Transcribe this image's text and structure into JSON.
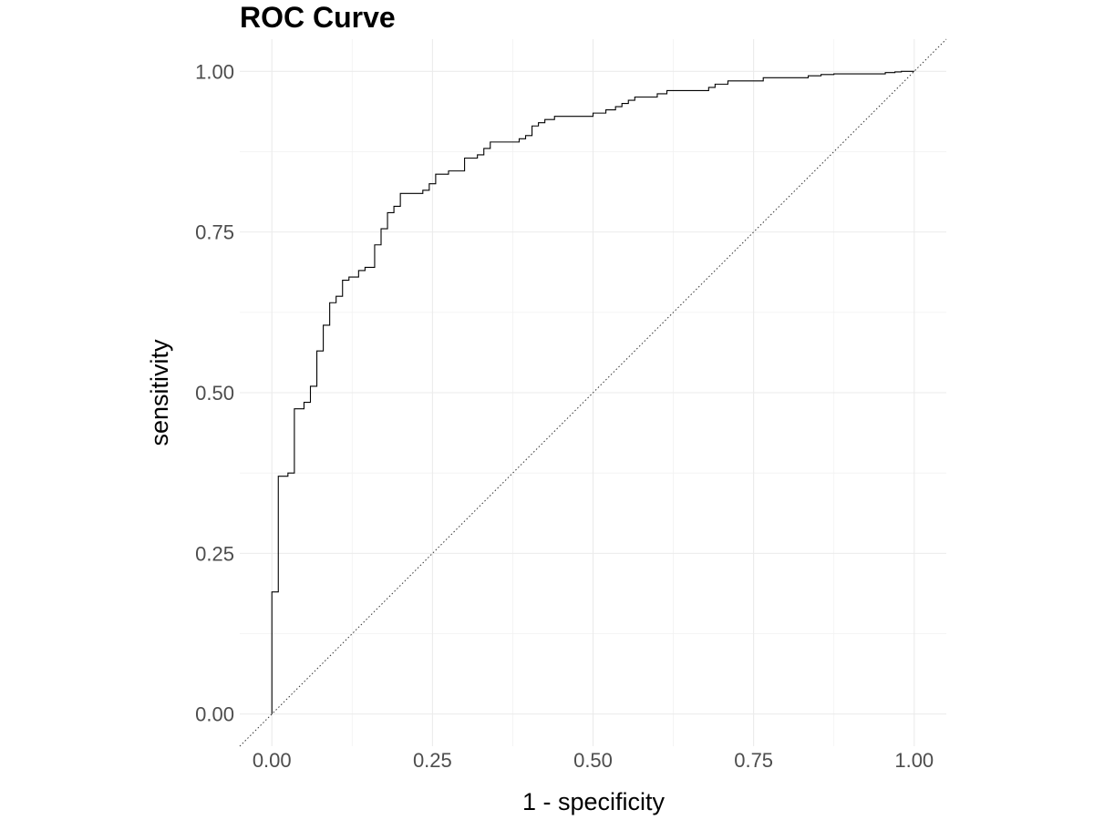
{
  "chart_data": {
    "type": "line",
    "title": "ROC Curve",
    "xlabel": "1 - specificity",
    "ylabel": "sensitivity",
    "xlim": [
      -0.05,
      1.05
    ],
    "ylim": [
      -0.05,
      1.05
    ],
    "grid": true,
    "x_ticks": [
      0,
      0.25,
      0.5,
      0.75,
      1
    ],
    "x_tick_labels": [
      "0.00",
      "0.25",
      "0.50",
      "0.75",
      "1.00"
    ],
    "y_ticks": [
      0,
      0.25,
      0.5,
      0.75,
      1
    ],
    "y_tick_labels": [
      "0.00",
      "0.25",
      "0.50",
      "0.75",
      "1.00"
    ],
    "series": [
      {
        "style": "step",
        "color": "#000000",
        "x": [
          0,
          0,
          0.01,
          0.01,
          0.025,
          0.025,
          0.035,
          0.035,
          0.05,
          0.05,
          0.06,
          0.06,
          0.07,
          0.07,
          0.08,
          0.08,
          0.09,
          0.09,
          0.1,
          0.1,
          0.11,
          0.11,
          0.12,
          0.12,
          0.135,
          0.135,
          0.145,
          0.145,
          0.16,
          0.16,
          0.17,
          0.17,
          0.18,
          0.18,
          0.19,
          0.19,
          0.2,
          0.2,
          0.235,
          0.235,
          0.245,
          0.245,
          0.255,
          0.255,
          0.275,
          0.275,
          0.3,
          0.3,
          0.32,
          0.32,
          0.33,
          0.33,
          0.34,
          0.34,
          0.385,
          0.385,
          0.395,
          0.395,
          0.405,
          0.405,
          0.415,
          0.415,
          0.425,
          0.425,
          0.44,
          0.44,
          0.5,
          0.5,
          0.52,
          0.52,
          0.535,
          0.535,
          0.545,
          0.545,
          0.555,
          0.555,
          0.565,
          0.565,
          0.6,
          0.6,
          0.615,
          0.615,
          0.68,
          0.68,
          0.69,
          0.69,
          0.71,
          0.71,
          0.765,
          0.765,
          0.835,
          0.835,
          0.855,
          0.855,
          0.875,
          0.875,
          0.955,
          0.955,
          0.97,
          0.97,
          0.98,
          0.98,
          1
        ],
        "y": [
          0,
          0.19,
          0.19,
          0.37,
          0.37,
          0.375,
          0.375,
          0.475,
          0.475,
          0.485,
          0.485,
          0.51,
          0.51,
          0.565,
          0.565,
          0.605,
          0.605,
          0.64,
          0.64,
          0.65,
          0.65,
          0.675,
          0.675,
          0.68,
          0.68,
          0.69,
          0.69,
          0.695,
          0.695,
          0.73,
          0.73,
          0.755,
          0.755,
          0.78,
          0.78,
          0.79,
          0.79,
          0.81,
          0.81,
          0.815,
          0.815,
          0.825,
          0.825,
          0.84,
          0.84,
          0.845,
          0.845,
          0.865,
          0.865,
          0.87,
          0.87,
          0.88,
          0.88,
          0.89,
          0.89,
          0.895,
          0.895,
          0.9,
          0.9,
          0.915,
          0.915,
          0.92,
          0.92,
          0.925,
          0.925,
          0.93,
          0.93,
          0.935,
          0.935,
          0.94,
          0.94,
          0.945,
          0.945,
          0.95,
          0.95,
          0.955,
          0.955,
          0.96,
          0.96,
          0.965,
          0.965,
          0.97,
          0.97,
          0.975,
          0.975,
          0.98,
          0.98,
          0.985,
          0.985,
          0.99,
          0.99,
          0.993,
          0.993,
          0.995,
          0.995,
          0.996,
          0.996,
          0.998,
          0.998,
          0.999,
          0.999,
          1,
          1
        ]
      },
      {
        "style": "dotted",
        "color": "#333333",
        "x": [
          -0.05,
          1.05
        ],
        "y": [
          -0.05,
          1.05
        ]
      }
    ]
  }
}
